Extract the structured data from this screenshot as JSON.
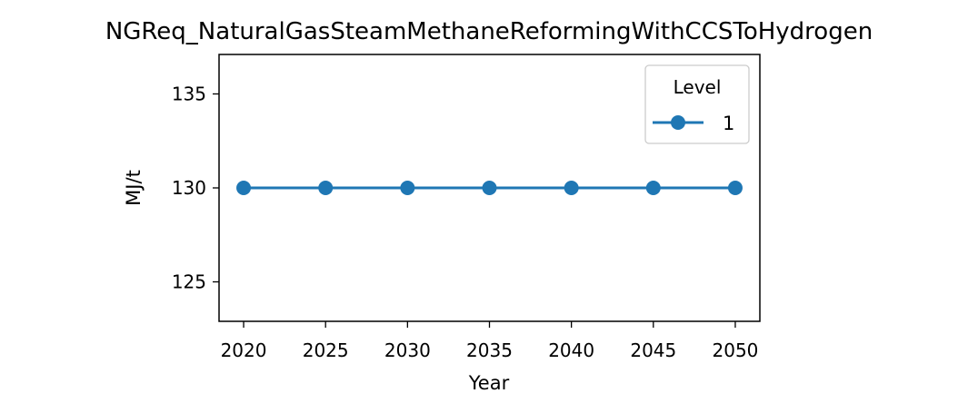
{
  "chart_data": {
    "type": "line",
    "title": "NGReq_NaturalGasSteamMethaneReformingWithCCSToHydrogen",
    "xlabel": "Year",
    "ylabel": "MJ/t",
    "x": [
      2020,
      2025,
      2030,
      2035,
      2040,
      2045,
      2050
    ],
    "xticks": [
      "2020",
      "2025",
      "2030",
      "2035",
      "2040",
      "2045",
      "2050"
    ],
    "xlim": [
      2018.5,
      2051.5
    ],
    "yticks": [
      "125",
      "130",
      "135"
    ],
    "ylim": [
      122.9,
      137.1
    ],
    "grid": false,
    "legend": {
      "title": "Level",
      "placement": "top-right"
    },
    "series": [
      {
        "name": "1",
        "color": "#1f77b4",
        "marker": "circle",
        "values": [
          130,
          130,
          130,
          130,
          130,
          130,
          130
        ]
      }
    ]
  }
}
